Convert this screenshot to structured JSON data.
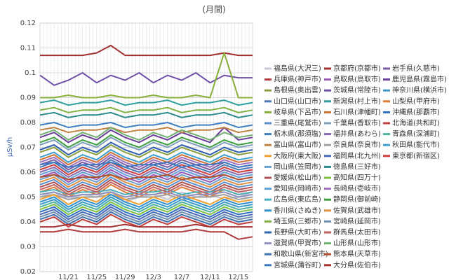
{
  "chart_data": {
    "type": "line",
    "title": "(月間)",
    "y_label": "μSv/h",
    "categories": [
      null,
      null,
      "11/21",
      null,
      "11/25",
      null,
      "11/29",
      null,
      "12/3",
      null,
      "12/7",
      null,
      "12/11",
      null,
      "12/15",
      null
    ],
    "ylim": [
      0.02,
      0.12
    ],
    "yticks": [
      0.02,
      0.03,
      0.04,
      0.05,
      0.06,
      0.07,
      0.08,
      0.09,
      0.1,
      0.11,
      0.12
    ],
    "grid": true,
    "series": [
      {
        "name": "福島県(大沢三)",
        "color": "#c8c8d8",
        "values": [
          0.05,
          0.052,
          0.049,
          0.051,
          0.05,
          0.053,
          0.048,
          0.05,
          0.051,
          0.049,
          0.052,
          0.05,
          0.051,
          0.049,
          0.05,
          0.052
        ]
      },
      {
        "name": "京都府(京都市)",
        "color": "#a03030",
        "values": [
          0.107,
          0.107,
          0.107,
          0.107,
          0.108,
          0.111,
          0.107,
          0.107,
          0.107,
          0.107,
          0.107,
          0.107,
          0.107,
          0.108,
          0.107,
          0.107
        ]
      },
      {
        "name": "岩手県(久慈市)",
        "color": "#7a5ca0",
        "values": [
          0.063,
          0.065,
          0.061,
          0.064,
          0.062,
          0.066,
          0.063,
          0.061,
          0.064,
          0.062,
          0.065,
          0.063,
          0.061,
          0.064,
          0.062,
          0.063
        ]
      },
      {
        "name": "兵庫県(神戸市)",
        "color": "#b03a3a",
        "values": [
          0.036,
          0.036,
          0.037,
          0.036,
          0.036,
          0.036,
          0.037,
          0.036,
          0.036,
          0.036,
          0.036,
          0.037,
          0.036,
          0.036,
          0.033,
          0.034
        ]
      },
      {
        "name": "鳥取県(鳥取市)",
        "color": "#9b59b6",
        "values": [
          0.058,
          0.06,
          0.056,
          0.059,
          0.057,
          0.061,
          0.058,
          0.056,
          0.059,
          0.057,
          0.06,
          0.058,
          0.056,
          0.059,
          0.057,
          0.058
        ]
      },
      {
        "name": "鹿児島県(霧島市)",
        "color": "#6a3d9a",
        "values": [
          0.074,
          0.076,
          0.072,
          0.075,
          0.073,
          0.077,
          0.074,
          0.072,
          0.075,
          0.073,
          0.076,
          0.074,
          0.072,
          0.078,
          0.073,
          0.074
        ]
      },
      {
        "name": "島根県(奥出雲)",
        "color": "#8aa03c",
        "values": [
          0.068,
          0.07,
          0.066,
          0.069,
          0.067,
          0.071,
          0.068,
          0.066,
          0.069,
          0.067,
          0.07,
          0.068,
          0.066,
          0.069,
          0.067,
          0.068
        ]
      },
      {
        "name": "茨城県(常陸市)",
        "color": "#7050a8",
        "values": [
          0.099,
          0.095,
          0.097,
          0.1,
          0.096,
          0.099,
          0.097,
          0.1,
          0.096,
          0.099,
          0.097,
          0.1,
          0.096,
          0.099,
          0.098,
          0.098
        ]
      },
      {
        "name": "神奈川県(横浜市)",
        "color": "#3a9ac8",
        "values": [
          0.047,
          0.049,
          0.045,
          0.048,
          0.046,
          0.05,
          0.047,
          0.045,
          0.048,
          0.046,
          0.049,
          0.047,
          0.045,
          0.048,
          0.046,
          0.047
        ]
      },
      {
        "name": "山口県(山口市)",
        "color": "#4a7ab8",
        "values": [
          0.062,
          0.064,
          0.06,
          0.063,
          0.061,
          0.065,
          0.062,
          0.06,
          0.063,
          0.061,
          0.064,
          0.062,
          0.06,
          0.063,
          0.061,
          0.062
        ]
      },
      {
        "name": "新潟県(村上市)",
        "color": "#2e9e9e",
        "values": [
          0.088,
          0.089,
          0.087,
          0.088,
          0.088,
          0.089,
          0.087,
          0.088,
          0.088,
          0.089,
          0.087,
          0.088,
          0.088,
          0.089,
          0.087,
          0.088
        ]
      },
      {
        "name": "山梨県(甲府市)",
        "color": "#e07a30",
        "values": [
          0.052,
          0.054,
          0.05,
          0.053,
          0.051,
          0.055,
          0.052,
          0.05,
          0.053,
          0.051,
          0.054,
          0.052,
          0.05,
          0.053,
          0.051,
          0.052
        ]
      },
      {
        "name": "岐阜県(下呂市)",
        "color": "#86b03a",
        "values": [
          0.09,
          0.09,
          0.091,
          0.09,
          0.09,
          0.091,
          0.09,
          0.09,
          0.091,
          0.09,
          0.09,
          0.091,
          0.09,
          0.108,
          0.09,
          0.09
        ]
      },
      {
        "name": "石川県(津幡町)",
        "color": "#d07030",
        "values": [
          0.065,
          0.067,
          0.063,
          0.066,
          0.064,
          0.068,
          0.065,
          0.063,
          0.066,
          0.064,
          0.067,
          0.065,
          0.063,
          0.066,
          0.064,
          0.065
        ]
      },
      {
        "name": "沖縄県(那覇市)",
        "color": "#3070c0",
        "values": [
          0.044,
          0.046,
          0.042,
          0.045,
          0.043,
          0.047,
          0.044,
          0.042,
          0.045,
          0.043,
          0.046,
          0.044,
          0.042,
          0.045,
          0.043,
          0.044
        ]
      },
      {
        "name": "三重県(尾鷲市)",
        "color": "#5a8fd0",
        "values": [
          0.055,
          0.057,
          0.053,
          0.056,
          0.054,
          0.058,
          0.055,
          0.053,
          0.056,
          0.054,
          0.057,
          0.055,
          0.053,
          0.056,
          0.054,
          0.055
        ]
      },
      {
        "name": "千葉県(香取市)",
        "color": "#80a0c0",
        "values": [
          0.071,
          0.073,
          0.069,
          0.072,
          0.07,
          0.074,
          0.071,
          0.069,
          0.072,
          0.07,
          0.073,
          0.071,
          0.069,
          0.072,
          0.07,
          0.071
        ]
      },
      {
        "name": "北海道(共和町)",
        "color": "#c04040",
        "values": [
          0.04,
          0.042,
          0.038,
          0.041,
          0.039,
          0.043,
          0.04,
          0.038,
          0.041,
          0.039,
          0.042,
          0.04,
          0.038,
          0.041,
          0.039,
          0.04
        ]
      },
      {
        "name": "栃木県(那須塩)",
        "color": "#4080c0",
        "values": [
          0.079,
          0.08,
          0.078,
          0.079,
          0.079,
          0.08,
          0.078,
          0.079,
          0.079,
          0.08,
          0.078,
          0.079,
          0.079,
          0.08,
          0.078,
          0.079
        ]
      },
      {
        "name": "福井県(あわら)",
        "color": "#8a6ab0",
        "values": [
          0.06,
          0.062,
          0.058,
          0.061,
          0.059,
          0.063,
          0.06,
          0.058,
          0.061,
          0.059,
          0.062,
          0.06,
          0.058,
          0.061,
          0.059,
          0.06
        ]
      },
      {
        "name": "青森県(深浦町)",
        "color": "#50b0a0",
        "values": [
          0.046,
          0.048,
          0.044,
          0.047,
          0.045,
          0.049,
          0.046,
          0.044,
          0.047,
          0.045,
          0.048,
          0.046,
          0.044,
          0.047,
          0.045,
          0.046
        ]
      },
      {
        "name": "富山県(富山市)",
        "color": "#c08040",
        "values": [
          0.077,
          0.078,
          0.076,
          0.077,
          0.077,
          0.078,
          0.076,
          0.077,
          0.077,
          0.078,
          0.076,
          0.077,
          0.077,
          0.078,
          0.076,
          0.077
        ]
      },
      {
        "name": "奈良県(奈良市)",
        "color": "#a0a0a0",
        "values": [
          0.05,
          0.051,
          0.049,
          0.05,
          0.05,
          0.051,
          0.049,
          0.05,
          0.05,
          0.051,
          0.049,
          0.05,
          0.05,
          0.051,
          0.049,
          0.05
        ]
      },
      {
        "name": "秋田県(能代市)",
        "color": "#3aa0d0",
        "values": [
          0.066,
          0.068,
          0.064,
          0.067,
          0.065,
          0.069,
          0.066,
          0.064,
          0.067,
          0.065,
          0.068,
          0.066,
          0.064,
          0.067,
          0.065,
          0.066
        ]
      },
      {
        "name": "大阪府(東大阪)",
        "color": "#f0a030",
        "values": [
          0.049,
          0.051,
          0.047,
          0.05,
          0.048,
          0.052,
          0.049,
          0.047,
          0.05,
          0.048,
          0.051,
          0.049,
          0.047,
          0.05,
          0.048,
          0.049
        ]
      },
      {
        "name": "福岡県(北九州)",
        "color": "#4a6ab8",
        "values": [
          0.043,
          0.045,
          0.041,
          0.044,
          0.042,
          0.046,
          0.043,
          0.041,
          0.044,
          0.042,
          0.045,
          0.043,
          0.041,
          0.044,
          0.042,
          0.043
        ]
      },
      {
        "name": "東京都(新宿区)",
        "color": "#d04040",
        "values": [
          0.061,
          0.063,
          0.059,
          0.062,
          0.06,
          0.064,
          0.061,
          0.059,
          0.062,
          0.06,
          0.063,
          0.061,
          0.059,
          0.062,
          0.06,
          0.061
        ]
      },
      {
        "name": "岡山県(笠岡市)",
        "color": "#6aa0d0",
        "values": [
          0.057,
          0.059,
          0.055,
          0.058,
          0.056,
          0.06,
          0.057,
          0.055,
          0.058,
          0.056,
          0.059,
          0.057,
          0.055,
          0.058,
          0.056,
          0.057
        ]
      },
      {
        "name": "徳島県(三好市)",
        "color": "#2a8a8a",
        "values": [
          0.083,
          0.084,
          0.082,
          0.083,
          0.083,
          0.084,
          0.082,
          0.083,
          0.083,
          0.084,
          0.082,
          0.083,
          0.083,
          0.084,
          0.082,
          0.083
        ]
      },
      {
        "name": "愛媛県(松山市)",
        "color": "#b05050",
        "values": [
          0.054,
          0.056,
          0.052,
          0.055,
          0.053,
          0.057,
          0.054,
          0.052,
          0.055,
          0.053,
          0.056,
          0.054,
          0.052,
          0.055,
          0.053,
          0.054
        ]
      },
      {
        "name": "高知県(四万十)",
        "color": "#80c040",
        "values": [
          0.045,
          0.047,
          0.043,
          0.046,
          0.044,
          0.048,
          0.045,
          0.043,
          0.046,
          0.044,
          0.047,
          0.045,
          0.043,
          0.046,
          0.044,
          0.045
        ]
      },
      {
        "name": "愛知県(岡崎市)",
        "color": "#60a0d8",
        "values": [
          0.059,
          0.061,
          0.057,
          0.06,
          0.058,
          0.062,
          0.059,
          0.057,
          0.06,
          0.058,
          0.061,
          0.059,
          0.057,
          0.06,
          0.058,
          0.059
        ]
      },
      {
        "name": "長崎県(壱岐市)",
        "color": "#a070c0",
        "values": [
          0.064,
          0.066,
          0.062,
          0.065,
          0.063,
          0.067,
          0.064,
          0.062,
          0.065,
          0.063,
          0.066,
          0.064,
          0.062,
          0.065,
          0.063,
          0.064
        ]
      },
      {
        "name": "広島県(東広島)",
        "color": "#4ab0c0",
        "values": [
          0.052,
          0.053,
          0.051,
          0.052,
          0.052,
          0.053,
          0.051,
          0.052,
          0.052,
          0.053,
          0.051,
          0.052,
          0.052,
          0.053,
          0.051,
          0.052
        ]
      },
      {
        "name": "静岡県(御前崎)",
        "color": "#40a040",
        "values": [
          0.072,
          0.074,
          0.07,
          0.073,
          0.071,
          0.075,
          0.072,
          0.07,
          0.073,
          0.071,
          0.074,
          0.072,
          0.07,
          0.073,
          0.071,
          0.072
        ]
      },
      {
        "name": "香川県(さぬき)",
        "color": "#3090d0",
        "values": [
          0.048,
          0.05,
          0.046,
          0.049,
          0.047,
          0.051,
          0.048,
          0.046,
          0.049,
          0.047,
          0.05,
          0.048,
          0.046,
          0.049,
          0.047,
          0.048
        ]
      },
      {
        "name": "佐賀県(武雄市)",
        "color": "#e09040",
        "values": [
          0.056,
          0.058,
          0.054,
          0.057,
          0.055,
          0.059,
          0.056,
          0.054,
          0.057,
          0.055,
          0.058,
          0.056,
          0.054,
          0.057,
          0.055,
          0.056
        ]
      },
      {
        "name": "埼玉県(三郷市)",
        "color": "#80b040",
        "values": [
          0.085,
          0.086,
          0.084,
          0.085,
          0.085,
          0.086,
          0.084,
          0.085,
          0.085,
          0.086,
          0.084,
          0.085,
          0.085,
          0.086,
          0.084,
          0.085
        ]
      },
      {
        "name": "宮崎県(延岡市)",
        "color": "#7090b0",
        "values": [
          0.042,
          0.044,
          0.04,
          0.043,
          0.041,
          0.045,
          0.042,
          0.04,
          0.043,
          0.041,
          0.044,
          0.042,
          0.04,
          0.043,
          0.041,
          0.042
        ]
      },
      {
        "name": "長野県(大町市)",
        "color": "#3060b0",
        "values": [
          0.069,
          0.071,
          0.067,
          0.07,
          0.068,
          0.072,
          0.069,
          0.067,
          0.07,
          0.068,
          0.071,
          0.069,
          0.067,
          0.07,
          0.068,
          0.069
        ]
      },
      {
        "name": "群馬県(太田市)",
        "color": "#c06060",
        "values": [
          0.053,
          0.055,
          0.051,
          0.054,
          0.052,
          0.056,
          0.053,
          0.051,
          0.054,
          0.052,
          0.055,
          0.053,
          0.051,
          0.054,
          0.052,
          0.053
        ]
      },
      {
        "name": "滋賀県(甲賀市)",
        "color": "#9090c0",
        "values": [
          0.051,
          0.052,
          0.05,
          0.051,
          0.051,
          0.052,
          0.05,
          0.051,
          0.051,
          0.052,
          0.05,
          0.051,
          0.051,
          0.052,
          0.05,
          0.051
        ]
      },
      {
        "name": "山形県(山形市)",
        "color": "#70b070",
        "values": [
          0.075,
          0.077,
          0.073,
          0.076,
          0.074,
          0.078,
          0.075,
          0.073,
          0.076,
          0.074,
          0.077,
          0.075,
          0.073,
          0.076,
          0.074,
          0.075
        ]
      },
      {
        "name": "和歌山県(新宮市)",
        "color": "#4070b0",
        "values": [
          0.041,
          0.043,
          0.039,
          0.042,
          0.04,
          0.044,
          0.041,
          0.039,
          0.042,
          0.04,
          0.043,
          0.041,
          0.039,
          0.042,
          0.04,
          0.041
        ]
      },
      {
        "name": "熊本県(天草市)",
        "color": "#b05030",
        "values": [
          0.058,
          0.059,
          0.057,
          0.058,
          0.058,
          0.059,
          0.057,
          0.058,
          0.058,
          0.059,
          0.057,
          0.058,
          0.058,
          0.059,
          0.057,
          0.058
        ]
      },
      {
        "name": "宮城県(蒲谷町)",
        "color": "#3a78c0",
        "values": [
          0.063,
          0.064,
          0.062,
          0.063,
          0.063,
          0.064,
          0.062,
          0.063,
          0.063,
          0.064,
          0.062,
          0.063,
          0.063,
          0.064,
          0.062,
          0.063
        ]
      },
      {
        "name": "大分県(佐伯市)",
        "color": "#a83232",
        "values": [
          0.038,
          0.038,
          0.039,
          0.038,
          0.038,
          0.038,
          0.039,
          0.038,
          0.038,
          0.038,
          0.038,
          0.039,
          0.038,
          0.038,
          0.038,
          0.038
        ]
      }
    ]
  }
}
